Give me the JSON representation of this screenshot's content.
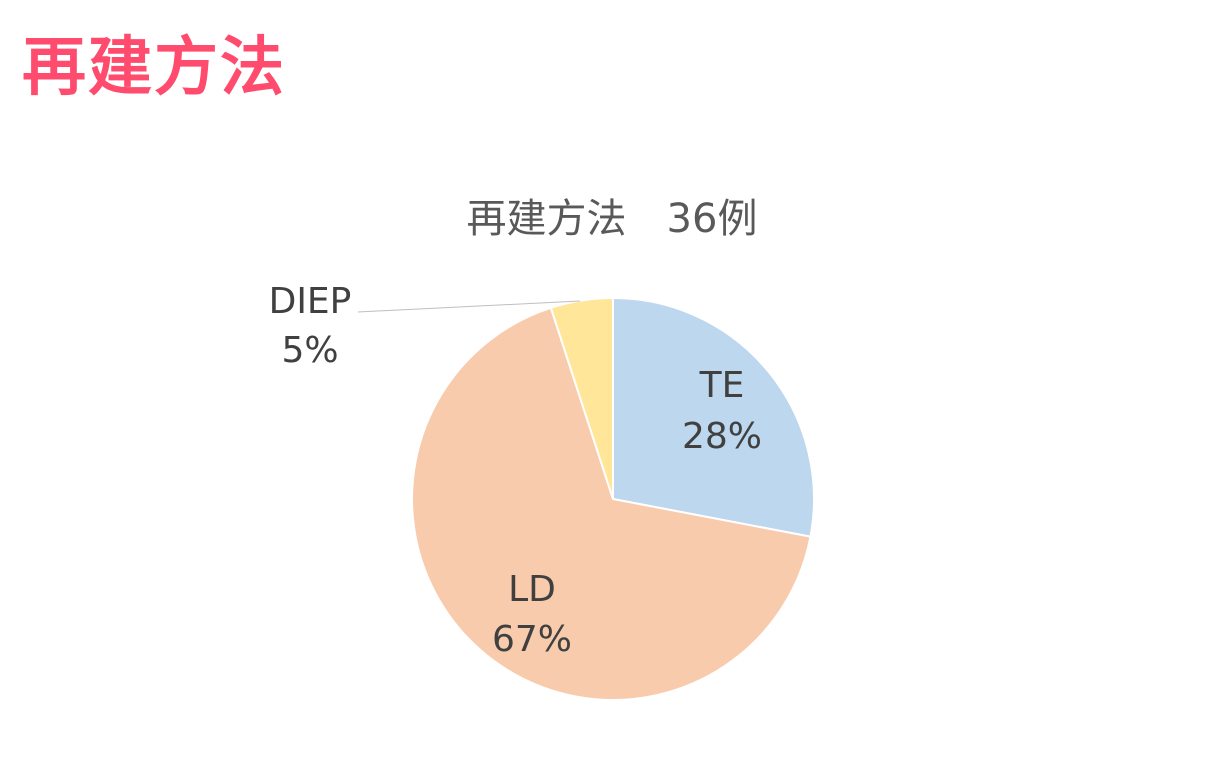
{
  "page": {
    "heading": "再建方法",
    "heading_color": "#ff4c6e"
  },
  "chart_data": {
    "type": "pie",
    "title": "再建方法　36例",
    "start_angle_deg": 0,
    "direction": "clockwise",
    "slices": [
      {
        "name": "TE",
        "percent": 28,
        "percent_label": "28%",
        "color": "#bdd7ee"
      },
      {
        "name": "LD",
        "percent": 67,
        "percent_label": "67%",
        "color": "#f8cbad"
      },
      {
        "name": "DIEP",
        "percent": 5,
        "percent_label": "5%",
        "color": "#ffe699"
      }
    ],
    "leader_line_color": "#bfbfbf",
    "slice_border_color": "#ffffff"
  }
}
